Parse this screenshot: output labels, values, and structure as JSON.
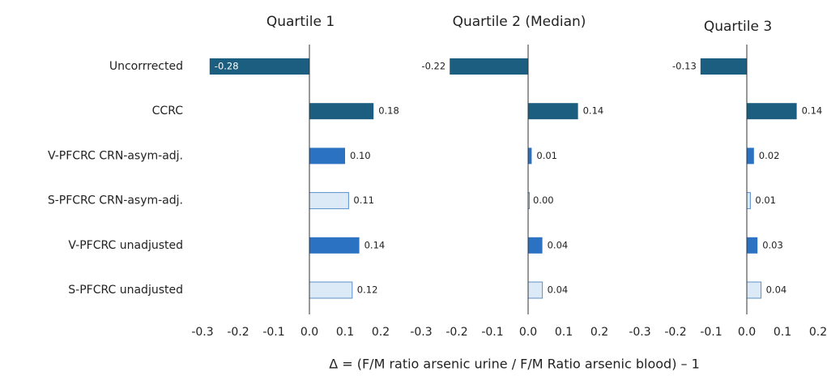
{
  "chart_data": {
    "type": "bar",
    "orientation": "horizontal",
    "categories": [
      "Uncorrrected",
      "CCRC",
      "V-PFCRC CRN-asym-adj.",
      "S-PFCRC CRN-asym-adj.",
      "V-PFCRC unadjusted",
      "S-PFCRC unadjusted"
    ],
    "colors": [
      "#1b5e80",
      "#1b5e80",
      "#2b72c2",
      "#dce9f7",
      "#2b72c2",
      "#dce9f7"
    ],
    "xlabel": "Δ = (F/M ratio arsenic urine / F/M Ratio arsenic blood) – 1",
    "panels": [
      {
        "title": "Quartile 1",
        "values": [
          -0.28,
          0.18,
          0.1,
          0.11,
          0.14,
          0.12
        ],
        "value_labels": [
          "-0.28",
          "0.18",
          "0.10",
          "0.11",
          "0.14",
          "0.12"
        ],
        "xlim": [
          -0.3,
          0.2
        ],
        "xticks": [
          -0.3,
          -0.2,
          -0.1,
          {
            "value": 0,
            "label": "0.0"
          },
          0.1,
          0.2
        ]
      },
      {
        "title": "Quartile 2 (Median)",
        "values": [
          -0.22,
          0.14,
          0.01,
          0,
          0.04,
          0.04
        ],
        "value_labels": [
          "-0.22",
          "0.14",
          "0.01",
          "0.00",
          "0.04",
          "0.04"
        ],
        "xlim": [
          -0.3,
          0.2
        ],
        "xticks": [
          -0.3,
          -0.2,
          -0.1,
          {
            "value": 0,
            "label": "0.0"
          },
          0.1,
          0.2
        ]
      },
      {
        "title": "Quartile 3",
        "values": [
          -0.13,
          0.14,
          0.02,
          0.01,
          0.03,
          0.04
        ],
        "value_labels": [
          "-0.13",
          "0.14",
          "0.02",
          "0.01",
          "0.03",
          "0.04"
        ],
        "xlim": [
          -0.3,
          0.2
        ],
        "xticks": [
          -0.3,
          -0.2,
          -0.1,
          {
            "value": 0,
            "label": "0.0"
          },
          0.1,
          0.2
        ]
      }
    ]
  }
}
